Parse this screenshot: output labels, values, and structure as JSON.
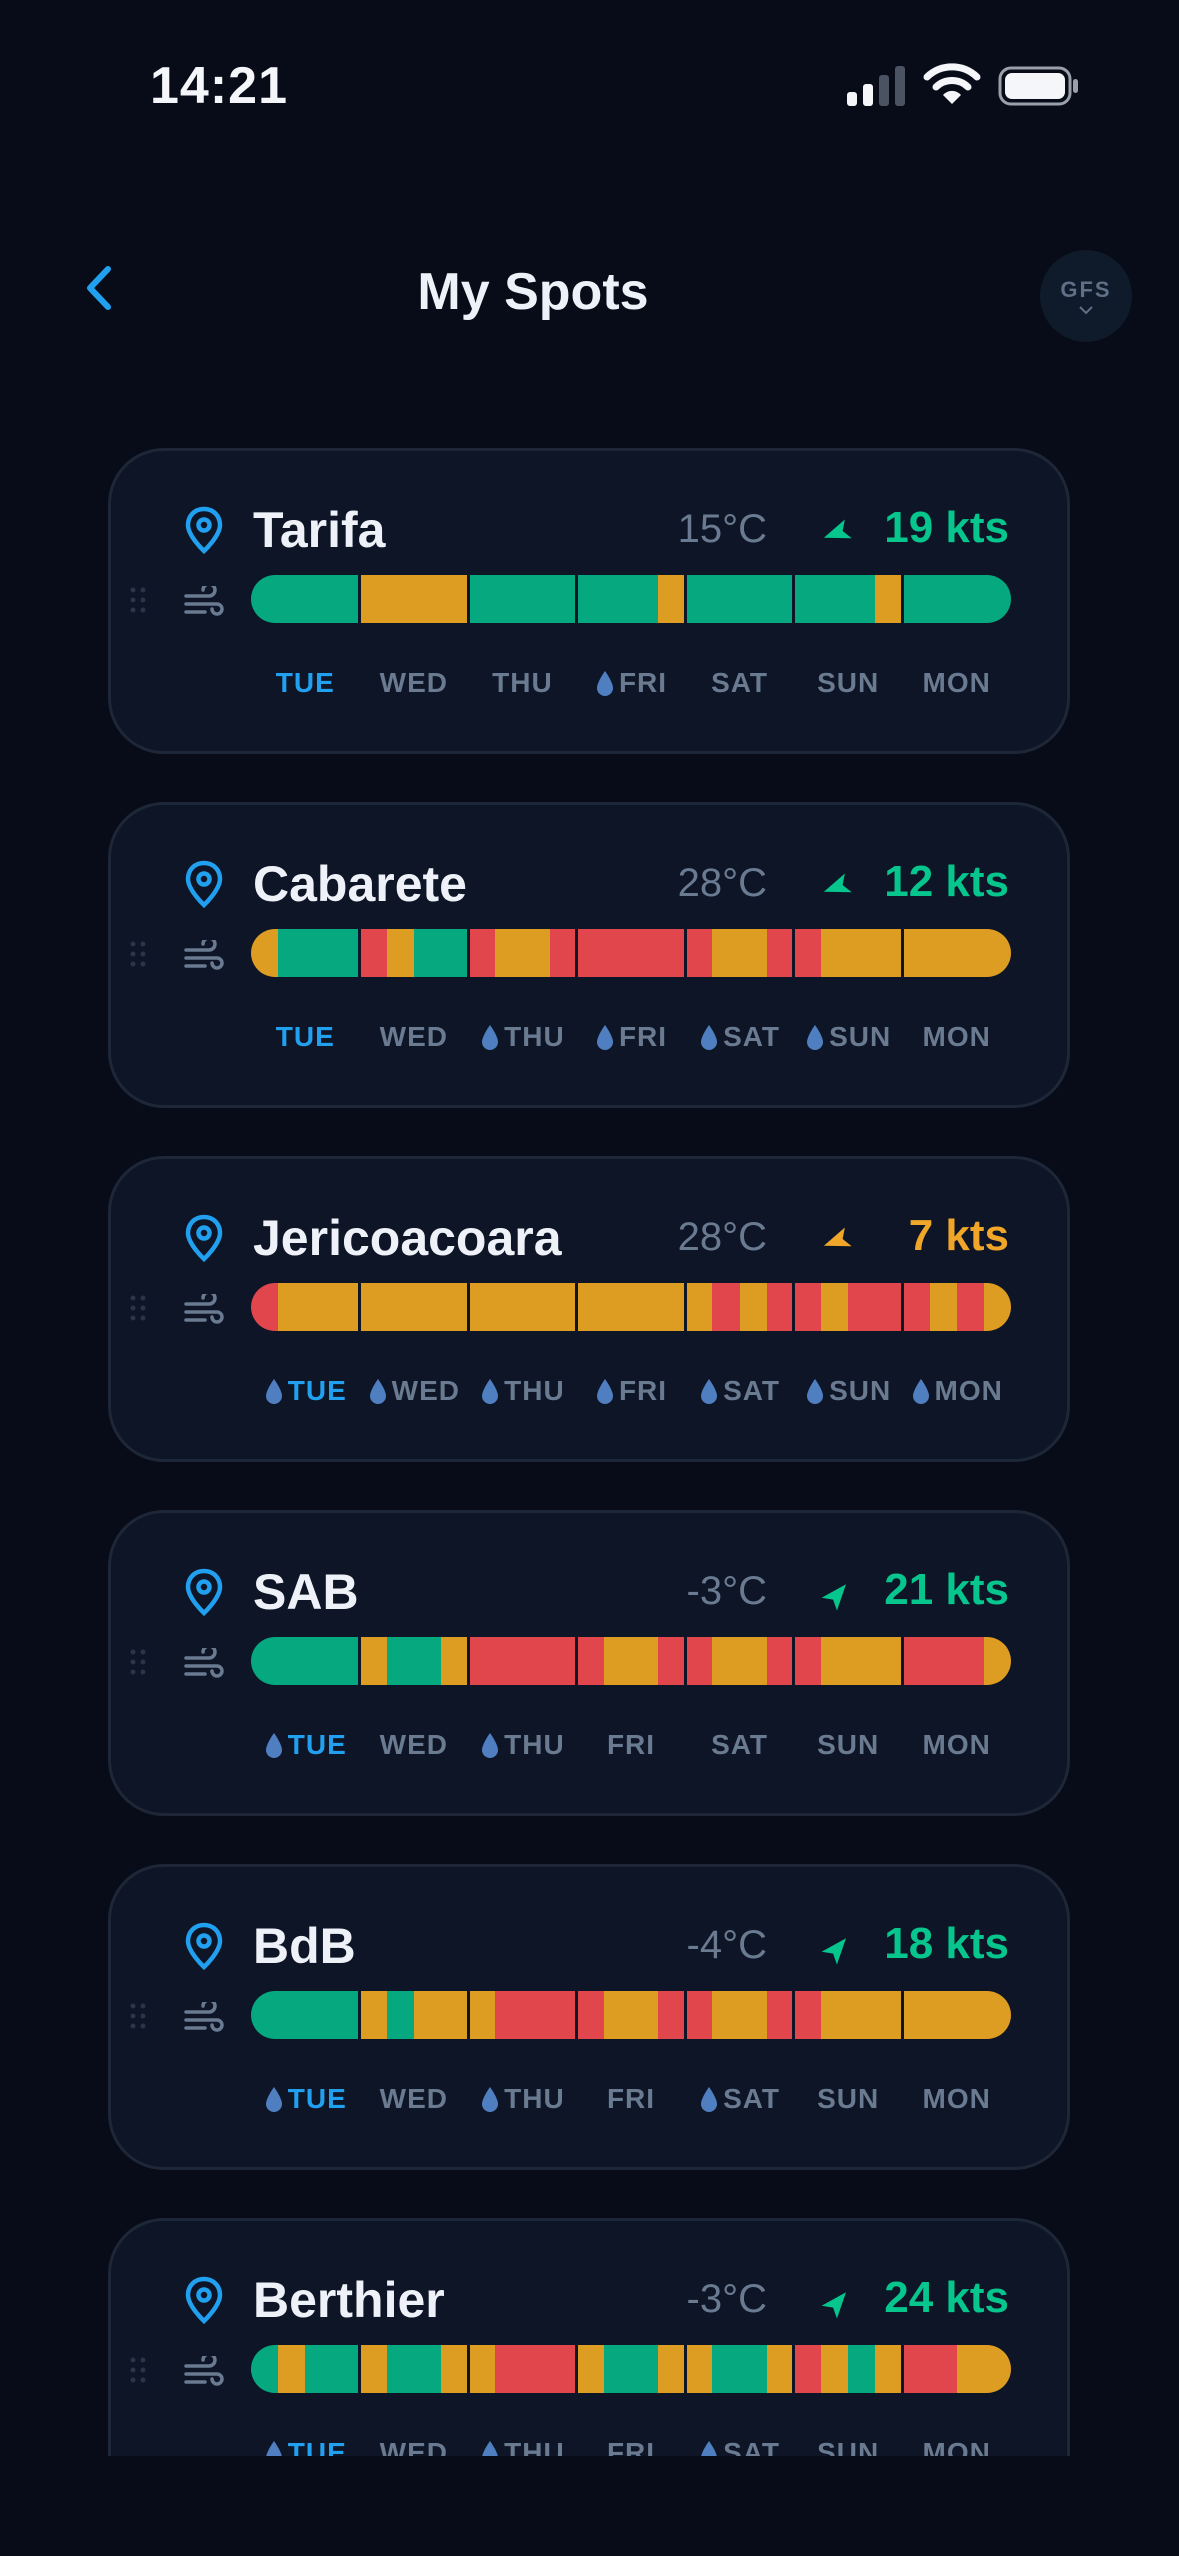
{
  "status_bar": {
    "time": "14:21"
  },
  "header": {
    "title": "My Spots",
    "model_button": "GFS"
  },
  "colors": {
    "good": "#06a97f",
    "medium": "#dd9c22",
    "bad": "#e0464c",
    "accent": "#22a0f0",
    "rain_drop": "#4f7fc0"
  },
  "spots": [
    {
      "name": "Tarifa",
      "temp": "15°C",
      "wind": "19 kts",
      "wind_color": "#06c58d",
      "days": [
        {
          "label": "TUE",
          "today": true,
          "rain": false
        },
        {
          "label": "WED",
          "today": false,
          "rain": false
        },
        {
          "label": "THU",
          "today": false,
          "rain": false
        },
        {
          "label": "FRI",
          "today": false,
          "rain": true
        },
        {
          "label": "SAT",
          "today": false,
          "rain": false
        },
        {
          "label": "SUN",
          "today": false,
          "rain": false
        },
        {
          "label": "MON",
          "today": false,
          "rain": false
        }
      ],
      "forecast": [
        [
          "good",
          "good",
          "good",
          "good"
        ],
        [
          "medium",
          "medium",
          "medium",
          "medium"
        ],
        [
          "good",
          "good",
          "good",
          "good"
        ],
        [
          "good",
          "good",
          "good",
          "medium"
        ],
        [
          "good",
          "good",
          "good",
          "good"
        ],
        [
          "good",
          "good",
          "good",
          "medium"
        ],
        [
          "good",
          "good",
          "good",
          "good"
        ]
      ]
    },
    {
      "name": "Cabarete",
      "temp": "28°C",
      "wind": "12 kts",
      "wind_color": "#06c58d",
      "days": [
        {
          "label": "TUE",
          "today": true,
          "rain": false
        },
        {
          "label": "WED",
          "today": false,
          "rain": false
        },
        {
          "label": "THU",
          "today": false,
          "rain": true
        },
        {
          "label": "FRI",
          "today": false,
          "rain": true
        },
        {
          "label": "SAT",
          "today": false,
          "rain": true
        },
        {
          "label": "SUN",
          "today": false,
          "rain": true
        },
        {
          "label": "MON",
          "today": false,
          "rain": false
        }
      ],
      "forecast": [
        [
          "medium",
          "good",
          "good",
          "good"
        ],
        [
          "bad",
          "medium",
          "good",
          "good"
        ],
        [
          "bad",
          "medium",
          "medium",
          "bad"
        ],
        [
          "bad",
          "bad",
          "bad",
          "bad"
        ],
        [
          "bad",
          "medium",
          "medium",
          "bad"
        ],
        [
          "bad",
          "medium",
          "medium",
          "medium"
        ],
        [
          "medium",
          "medium",
          "medium",
          "medium"
        ]
      ]
    },
    {
      "name": "Jericoacoara",
      "temp": "28°C",
      "wind": "7 kts",
      "wind_color": "#f0a628",
      "days": [
        {
          "label": "TUE",
          "today": true,
          "rain": true
        },
        {
          "label": "WED",
          "today": false,
          "rain": true
        },
        {
          "label": "THU",
          "today": false,
          "rain": true
        },
        {
          "label": "FRI",
          "today": false,
          "rain": true
        },
        {
          "label": "SAT",
          "today": false,
          "rain": true
        },
        {
          "label": "SUN",
          "today": false,
          "rain": true
        },
        {
          "label": "MON",
          "today": false,
          "rain": true
        }
      ],
      "forecast": [
        [
          "bad",
          "medium",
          "medium",
          "medium"
        ],
        [
          "medium",
          "medium",
          "medium",
          "medium"
        ],
        [
          "medium",
          "medium",
          "medium",
          "medium"
        ],
        [
          "medium",
          "medium",
          "medium",
          "medium"
        ],
        [
          "medium",
          "bad",
          "medium",
          "bad"
        ],
        [
          "bad",
          "medium",
          "bad",
          "bad"
        ],
        [
          "bad",
          "medium",
          "bad",
          "medium"
        ]
      ]
    },
    {
      "name": "SAB",
      "temp": "-3°C",
      "wind": "21 kts",
      "wind_color": "#06c58d",
      "days": [
        {
          "label": "TUE",
          "today": true,
          "rain": true
        },
        {
          "label": "WED",
          "today": false,
          "rain": false
        },
        {
          "label": "THU",
          "today": false,
          "rain": true
        },
        {
          "label": "FRI",
          "today": false,
          "rain": false
        },
        {
          "label": "SAT",
          "today": false,
          "rain": false
        },
        {
          "label": "SUN",
          "today": false,
          "rain": false
        },
        {
          "label": "MON",
          "today": false,
          "rain": false
        }
      ],
      "forecast": [
        [
          "good",
          "good",
          "good",
          "good"
        ],
        [
          "medium",
          "good",
          "good",
          "medium"
        ],
        [
          "bad",
          "bad",
          "bad",
          "bad"
        ],
        [
          "bad",
          "medium",
          "medium",
          "bad"
        ],
        [
          "bad",
          "medium",
          "medium",
          "bad"
        ],
        [
          "bad",
          "medium",
          "medium",
          "medium"
        ],
        [
          "bad",
          "bad",
          "bad",
          "medium"
        ]
      ]
    },
    {
      "name": "BdB",
      "temp": "-4°C",
      "wind": "18 kts",
      "wind_color": "#06c58d",
      "days": [
        {
          "label": "TUE",
          "today": true,
          "rain": true
        },
        {
          "label": "WED",
          "today": false,
          "rain": false
        },
        {
          "label": "THU",
          "today": false,
          "rain": true
        },
        {
          "label": "FRI",
          "today": false,
          "rain": false
        },
        {
          "label": "SAT",
          "today": false,
          "rain": true
        },
        {
          "label": "SUN",
          "today": false,
          "rain": false
        },
        {
          "label": "MON",
          "today": false,
          "rain": false
        }
      ],
      "forecast": [
        [
          "good",
          "good",
          "good",
          "good"
        ],
        [
          "medium",
          "good",
          "medium",
          "medium"
        ],
        [
          "medium",
          "bad",
          "bad",
          "bad"
        ],
        [
          "bad",
          "medium",
          "medium",
          "bad"
        ],
        [
          "bad",
          "medium",
          "medium",
          "bad"
        ],
        [
          "bad",
          "medium",
          "medium",
          "medium"
        ],
        [
          "medium",
          "medium",
          "medium",
          "medium"
        ]
      ]
    },
    {
      "name": "Berthier",
      "temp": "-3°C",
      "wind": "24 kts",
      "wind_color": "#06c58d",
      "days": [
        {
          "label": "TUE",
          "today": true,
          "rain": true
        },
        {
          "label": "WED",
          "today": false,
          "rain": false
        },
        {
          "label": "THU",
          "today": false,
          "rain": true
        },
        {
          "label": "FRI",
          "today": false,
          "rain": false
        },
        {
          "label": "SAT",
          "today": false,
          "rain": true
        },
        {
          "label": "SUN",
          "today": false,
          "rain": false
        },
        {
          "label": "MON",
          "today": false,
          "rain": false
        }
      ],
      "forecast": [
        [
          "good",
          "medium",
          "good",
          "good"
        ],
        [
          "medium",
          "good",
          "good",
          "medium"
        ],
        [
          "medium",
          "bad",
          "bad",
          "bad"
        ],
        [
          "medium",
          "good",
          "good",
          "medium"
        ],
        [
          "medium",
          "good",
          "good",
          "medium"
        ],
        [
          "bad",
          "medium",
          "good",
          "medium"
        ],
        [
          "bad",
          "bad",
          "medium",
          "medium"
        ]
      ]
    }
  ]
}
